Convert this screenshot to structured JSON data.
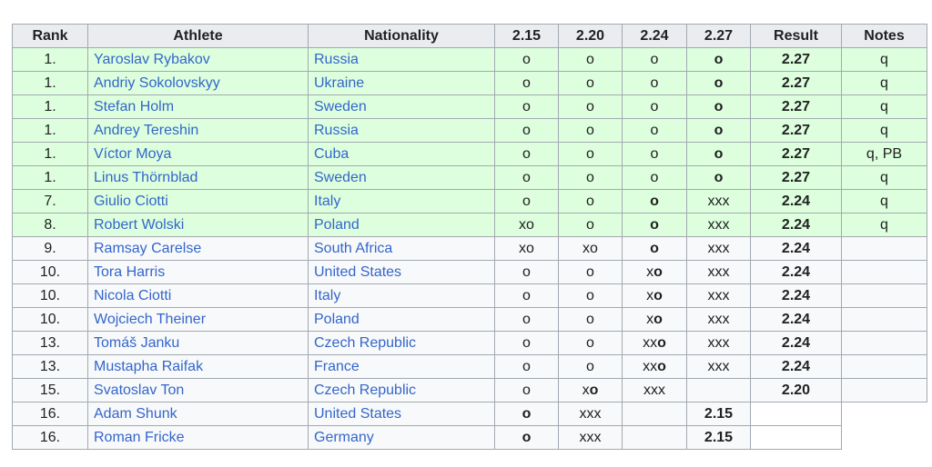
{
  "table": {
    "headers": {
      "rank": "Rank",
      "athlete": "Athlete",
      "nationality": "Nationality",
      "h1": "2.15",
      "h2": "2.20",
      "h3": "2.24",
      "h4": "2.27",
      "result": "Result",
      "notes": "Notes"
    },
    "rows": [
      {
        "rank": "1.",
        "athlete": "Yaroslav Rybakov",
        "nationality": "Russia",
        "h215": "o",
        "h220": "o",
        "h224": "o",
        "h227": "o",
        "result": "2.27",
        "notes": "q",
        "qualified": true
      },
      {
        "rank": "1.",
        "athlete": "Andriy Sokolovskyy",
        "nationality": "Ukraine",
        "h215": "o",
        "h220": "o",
        "h224": "o",
        "h227": "o",
        "result": "2.27",
        "notes": "q",
        "qualified": true
      },
      {
        "rank": "1.",
        "athlete": "Stefan Holm",
        "nationality": "Sweden",
        "h215": "o",
        "h220": "o",
        "h224": "o",
        "h227": "o",
        "result": "2.27",
        "notes": "q",
        "qualified": true
      },
      {
        "rank": "1.",
        "athlete": "Andrey Tereshin",
        "nationality": "Russia",
        "h215": "o",
        "h220": "o",
        "h224": "o",
        "h227": "o",
        "result": "2.27",
        "notes": "q",
        "qualified": true
      },
      {
        "rank": "1.",
        "athlete": "Víctor Moya",
        "nationality": "Cuba",
        "h215": "o",
        "h220": "o",
        "h224": "o",
        "h227": "o",
        "result": "2.27",
        "notes": "q, PB",
        "qualified": true
      },
      {
        "rank": "1.",
        "athlete": "Linus Thörnblad",
        "nationality": "Sweden",
        "h215": "o",
        "h220": "o",
        "h224": "o",
        "h227": "o",
        "result": "2.27",
        "notes": "q",
        "qualified": true
      },
      {
        "rank": "7.",
        "athlete": "Giulio Ciotti",
        "nationality": "Italy",
        "h215": "o",
        "h220": "o",
        "h224": "o",
        "h227": "xxx",
        "result": "2.24",
        "notes": "q",
        "qualified": true
      },
      {
        "rank": "8.",
        "athlete": "Robert Wolski",
        "nationality": "Poland",
        "h215": "xo",
        "h220": "o",
        "h224": "o",
        "h227": "xxx",
        "result": "2.24",
        "notes": "q",
        "qualified": true
      },
      {
        "rank": "9.",
        "athlete": "Ramsay Carelse",
        "nationality": "South Africa",
        "h215": "xo",
        "h220": "xo",
        "h224": "o",
        "h227": "xxx",
        "result": "2.24",
        "notes": "",
        "qualified": false
      },
      {
        "rank": "10.",
        "athlete": "Tora Harris",
        "nationality": "United States",
        "h215": "o",
        "h220": "o",
        "h224": "xo",
        "h227": "xxx",
        "result": "2.24",
        "notes": "",
        "qualified": false
      },
      {
        "rank": "10.",
        "athlete": "Nicola Ciotti",
        "nationality": "Italy",
        "h215": "o",
        "h220": "o",
        "h224": "xo",
        "h227": "xxx",
        "result": "2.24",
        "notes": "",
        "qualified": false
      },
      {
        "rank": "10.",
        "athlete": "Wojciech Theiner",
        "nationality": "Poland",
        "h215": "o",
        "h220": "o",
        "h224": "xo",
        "h227": "xxx",
        "result": "2.24",
        "notes": "",
        "qualified": false
      },
      {
        "rank": "13.",
        "athlete": "Tomáš Janku",
        "nationality": "Czech Republic",
        "h215": "o",
        "h220": "o",
        "h224": "xxo",
        "h227": "xxx",
        "result": "2.24",
        "notes": "",
        "qualified": false
      },
      {
        "rank": "13.",
        "athlete": "Mustapha Raifak",
        "nationality": "France",
        "h215": "o",
        "h220": "o",
        "h224": "xxo",
        "h227": "xxx",
        "result": "2.24",
        "notes": "",
        "qualified": false
      },
      {
        "rank": "15.",
        "athlete": "Svatoslav Ton",
        "nationality": "Czech Republic",
        "h215": "o",
        "h220": "xo",
        "h224": "xxx",
        "h227": "",
        "result": "2.20",
        "notes": "",
        "qualified": false
      },
      {
        "rank": "16.",
        "athlete": "Adam Shunk",
        "nationality": "United States",
        "h215": "o",
        "h220": "xxx",
        "h224": "",
        "h227": "2.15",
        "result": "",
        "notes": "",
        "qualified": false,
        "short": true
      },
      {
        "rank": "16.",
        "athlete": "Roman Fricke",
        "nationality": "Germany",
        "h215": "o",
        "h220": "xxx",
        "h224": "",
        "h227": "2.15",
        "result": "",
        "notes": "",
        "qualified": false,
        "short": true
      }
    ]
  },
  "colors": {
    "header_bg": "#eaecf0",
    "qualified_bg": "#ddffdd",
    "row_bg": "#f8f9fa",
    "link": "#3366cc",
    "border": "#a2a9b1"
  }
}
